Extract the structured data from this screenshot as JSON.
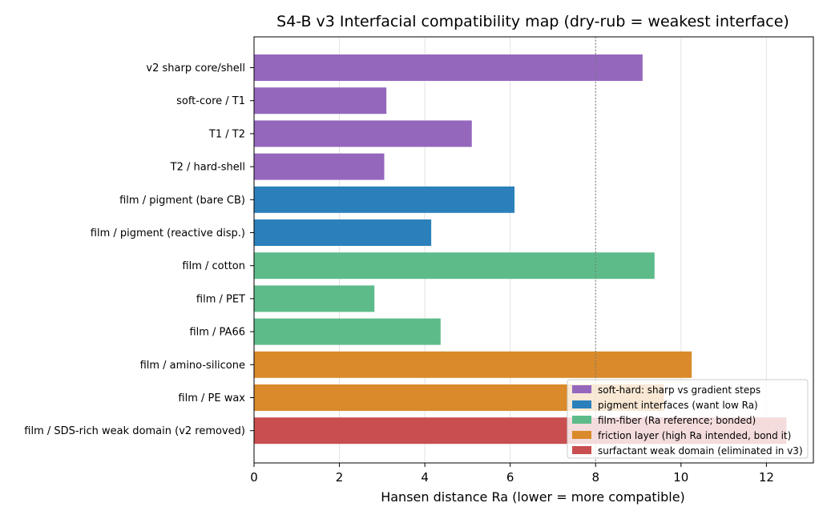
{
  "chart_data": {
    "type": "bar",
    "orientation": "horizontal",
    "title": "S4-B v3 Interfacial compatibility map (dry-rub = weakest interface)",
    "xlabel": "Hansen distance Ra (lower = more compatible)",
    "ylabel": "",
    "xlim": [
      0,
      13.1
    ],
    "xticks": [
      0,
      2,
      4,
      6,
      8,
      10,
      12
    ],
    "grid": "vertical",
    "reference_line": {
      "x": 8,
      "style": "dotted"
    },
    "legend_placement": "lower-right",
    "categories": [
      "v2 sharp core/shell",
      "soft-core / T1",
      "T1 / T2",
      "T2 / hard-shell",
      "film / pigment (bare CB)",
      "film / pigment (reactive disp.)",
      "film / cotton",
      "film / PET",
      "film / PA66",
      "film / amino-silicone",
      "film / PE wax",
      "film / SDS-rich weak domain (v2 removed)"
    ],
    "values": [
      9.1,
      3.1,
      5.1,
      3.05,
      6.1,
      4.15,
      9.38,
      2.82,
      4.37,
      10.25,
      9.6,
      12.47
    ],
    "groups": [
      0,
      0,
      0,
      0,
      1,
      1,
      2,
      2,
      2,
      3,
      3,
      4
    ],
    "series": [
      {
        "name": "soft-hard: sharp vs gradient steps",
        "color": "#9467bd"
      },
      {
        "name": "pigment interfaces (want low Ra)",
        "color": "#2b80bb"
      },
      {
        "name": "film-fiber (Ra reference; bonded)",
        "color": "#5dbb8a"
      },
      {
        "name": "friction layer (high Ra intended, bond it)",
        "color": "#da8a2a"
      },
      {
        "name": "surfactant weak domain (eliminated in v3)",
        "color": "#c84e50"
      }
    ]
  }
}
